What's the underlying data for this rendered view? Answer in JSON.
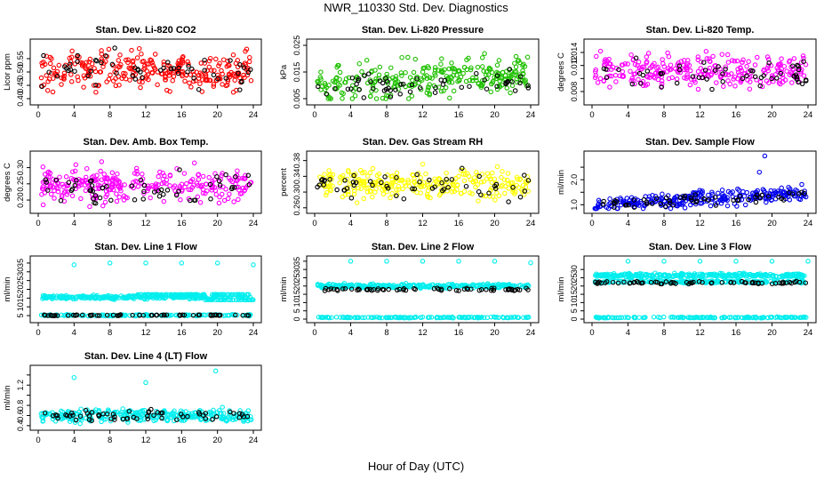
{
  "page": {
    "title": "NWR_110330  Std. Dev. Diagnostics",
    "xlabel": "Hour of Day (UTC)"
  },
  "colors": {
    "red": "#ff0000",
    "green": "#1fc000",
    "magenta": "#ff00ff",
    "yellow": "#ffff00",
    "blue": "#0000ee",
    "cyan": "#00eeee",
    "black": "#000000"
  },
  "chart_data": [
    {
      "type": "scatter",
      "title": "Stan. Dev. Li-820 CO2",
      "ylabel": "Licor ppm",
      "xlim": [
        0,
        24
      ],
      "xticks": [
        0,
        4,
        8,
        12,
        16,
        20,
        24
      ],
      "ylim": [
        0.39,
        0.61
      ],
      "yticks": [
        0.4,
        0.45,
        0.5,
        0.55
      ],
      "ytick_labels": [
        "0.40",
        "0.45",
        "0.50",
        "0.55"
      ],
      "series": [
        {
          "name": "main",
          "color": "red",
          "center": 0.505,
          "spread": 0.035,
          "count": 280,
          "min": 0.4,
          "max": 0.6
        },
        {
          "name": "black",
          "color": "black",
          "center": 0.51,
          "spread": 0.03,
          "count": 55,
          "min": 0.42,
          "max": 0.6
        }
      ]
    },
    {
      "type": "scatter",
      "title": "Stan. Dev. Li-820 Pressure",
      "ylabel": "kPa",
      "xlim": [
        0,
        24
      ],
      "xticks": [
        0,
        4,
        8,
        12,
        16,
        20,
        24
      ],
      "ylim": [
        0.004,
        0.026
      ],
      "yticks": [
        0.005,
        0.015,
        0.025
      ],
      "ytick_labels": [
        "0.005",
        "0.015",
        "0.025"
      ],
      "series": [
        {
          "name": "main",
          "color": "green",
          "center": 0.0095,
          "spread": 0.0035,
          "count": 280,
          "min": 0.005,
          "max": 0.026,
          "trend": 0.00022
        },
        {
          "name": "black",
          "color": "black",
          "center": 0.0085,
          "spread": 0.0022,
          "count": 55,
          "min": 0.005,
          "max": 0.018,
          "trend": 0.00015
        }
      ]
    },
    {
      "type": "scatter",
      "title": "Stan. Dev. Li-820 Temp.",
      "ylabel": "degrees C",
      "xlim": [
        0,
        24
      ],
      "xticks": [
        0,
        4,
        8,
        12,
        16,
        20,
        24
      ],
      "ylim": [
        0.0065,
        0.0155
      ],
      "yticks": [
        0.008,
        0.01,
        0.012,
        0.014
      ],
      "ytick_labels": [
        "0.008",
        "",
        "0.012",
        "0.014"
      ],
      "series": [
        {
          "name": "main",
          "color": "magenta",
          "center": 0.0112,
          "spread": 0.0012,
          "count": 280,
          "min": 0.007,
          "max": 0.0155
        },
        {
          "name": "black",
          "color": "black",
          "center": 0.0108,
          "spread": 0.0012,
          "count": 55,
          "min": 0.008,
          "max": 0.014
        }
      ]
    },
    {
      "type": "scatter",
      "title": "Stan. Dev. Amb. Box Temp.",
      "ylabel": "degrees C",
      "xlim": [
        0,
        24
      ],
      "xticks": [
        0,
        4,
        8,
        12,
        16,
        20,
        24
      ],
      "ylim": [
        0.17,
        0.34
      ],
      "yticks": [
        0.2,
        0.25,
        0.3
      ],
      "ytick_labels": [
        "0.20",
        "0.25",
        "0.30"
      ],
      "series": [
        {
          "name": "main",
          "color": "magenta",
          "center": 0.245,
          "spread": 0.025,
          "count": 280,
          "min": 0.18,
          "max": 0.33
        },
        {
          "name": "black",
          "color": "black",
          "center": 0.24,
          "spread": 0.022,
          "count": 55,
          "min": 0.19,
          "max": 0.3
        }
      ]
    },
    {
      "type": "scatter",
      "title": "Stan. Dev. Gas Stream RH",
      "ylabel": "percent",
      "xlim": [
        0,
        24
      ],
      "xticks": [
        0,
        4,
        8,
        12,
        16,
        20,
        24
      ],
      "ylim": [
        0.255,
        0.395
      ],
      "yticks": [
        0.26,
        0.3,
        0.34,
        0.38
      ],
      "ytick_labels": [
        "0.26",
        "0.30",
        "0.34",
        "0.38"
      ],
      "series": [
        {
          "name": "main",
          "color": "yellow",
          "center": 0.32,
          "spread": 0.018,
          "count": 280,
          "min": 0.265,
          "max": 0.385
        },
        {
          "name": "black",
          "color": "black",
          "center": 0.315,
          "spread": 0.016,
          "count": 55,
          "min": 0.265,
          "max": 0.39
        }
      ]
    },
    {
      "type": "scatter",
      "title": "Stan. Dev. Sample Flow",
      "ylabel": "ml/min",
      "xlim": [
        0,
        24
      ],
      "xticks": [
        0,
        4,
        8,
        12,
        16,
        20,
        24
      ],
      "ylim": [
        0.8,
        3.0
      ],
      "yticks": [
        1.0,
        1.5,
        2.0,
        2.5
      ],
      "ytick_labels": [
        "1.0",
        "",
        "2.0",
        ""
      ],
      "series": [
        {
          "name": "main",
          "color": "blue",
          "center": 1.0,
          "spread": 0.15,
          "count": 280,
          "min": 0.85,
          "max": 2.4,
          "trend": 0.02
        },
        {
          "name": "black",
          "color": "black",
          "center": 1.0,
          "spread": 0.12,
          "count": 55,
          "min": 0.9,
          "max": 2.4,
          "trend": 0.018
        },
        {
          "name": "outliers",
          "color": "blue",
          "points": [
            [
              19.2,
              2.95
            ],
            [
              18.6,
              2.3
            ]
          ]
        }
      ]
    },
    {
      "type": "scatter",
      "title": "Stan. Dev. Line 1 Flow",
      "ylabel": "ml/min",
      "xlim": [
        0,
        24
      ],
      "xticks": [
        0,
        4,
        8,
        12,
        16,
        20,
        24
      ],
      "ylim": [
        3,
        37
      ],
      "yticks": [
        5,
        10,
        15,
        20,
        25,
        30,
        35
      ],
      "ytick_labels": [
        "5",
        "10",
        "15",
        "20",
        "25",
        "30",
        "35"
      ],
      "series": [
        {
          "name": "band-a",
          "color": "cyan",
          "center": 15.5,
          "spread": 0.5,
          "count": 300,
          "min": 14,
          "max": 17,
          "split_after": 11,
          "split_to": 19.5
        },
        {
          "name": "band-b",
          "color": "cyan",
          "center": 16,
          "spread": 0.5,
          "count": 120,
          "min": 14,
          "max": 17,
          "xmin": 11,
          "xmax": 24,
          "drop_after": 18.5,
          "drop_to": 12.5
        },
        {
          "name": "low",
          "color": "cyan",
          "center": 5.2,
          "spread": 0.2,
          "count": 150,
          "min": 4.7,
          "max": 5.8
        },
        {
          "name": "black",
          "color": "black",
          "center": 5.2,
          "spread": 0.15,
          "count": 60,
          "min": 4.8,
          "max": 5.6
        },
        {
          "name": "outliers",
          "color": "cyan",
          "points": [
            [
              4,
              34
            ],
            [
              8,
              35
            ],
            [
              12,
              35
            ],
            [
              16,
              35
            ],
            [
              20,
              35
            ],
            [
              24,
              34
            ]
          ]
        }
      ]
    },
    {
      "type": "scatter",
      "title": "Stan. Dev. Line 2 Flow",
      "ylabel": "ml/min",
      "xlim": [
        0,
        24
      ],
      "xticks": [
        0,
        4,
        8,
        12,
        16,
        20,
        24
      ],
      "ylim": [
        0,
        36
      ],
      "yticks": [
        0,
        5,
        10,
        15,
        20,
        25,
        30,
        35
      ],
      "ytick_labels": [
        "0",
        "5",
        "10",
        "15",
        "20",
        "25",
        "30",
        "35"
      ],
      "series": [
        {
          "name": "main",
          "color": "cyan",
          "center": 20,
          "spread": 0.6,
          "count": 300,
          "min": 18.5,
          "max": 22
        },
        {
          "name": "low",
          "color": "cyan",
          "center": 1.0,
          "spread": 0.15,
          "count": 150,
          "min": 0.6,
          "max": 1.4
        },
        {
          "name": "black",
          "color": "black",
          "center": 18,
          "spread": 0.4,
          "count": 65,
          "min": 17,
          "max": 19
        },
        {
          "name": "outliers",
          "color": "cyan",
          "points": [
            [
              4,
              35
            ],
            [
              8,
              35
            ],
            [
              12,
              35
            ],
            [
              16,
              35
            ],
            [
              20,
              35
            ],
            [
              24,
              34
            ]
          ]
        }
      ]
    },
    {
      "type": "scatter",
      "title": "Stan. Dev. Line 3 Flow",
      "ylabel": "ml/min",
      "xlim": [
        0,
        24
      ],
      "xticks": [
        0,
        4,
        8,
        12,
        16,
        20,
        24
      ],
      "ylim": [
        0,
        36
      ],
      "yticks": [
        0,
        5,
        10,
        15,
        20,
        25,
        30
      ],
      "ytick_labels": [
        "0",
        "5",
        "10",
        "15",
        "20",
        "25",
        "30"
      ],
      "series": [
        {
          "name": "upper",
          "color": "cyan",
          "center": 26.5,
          "spread": 0.6,
          "count": 280,
          "min": 25,
          "max": 28.5
        },
        {
          "name": "mid",
          "color": "cyan",
          "center": 22.5,
          "spread": 0.4,
          "count": 200,
          "min": 21.5,
          "max": 23.5
        },
        {
          "name": "low",
          "color": "cyan",
          "center": 1.0,
          "spread": 0.15,
          "count": 150,
          "min": 0.6,
          "max": 1.4
        },
        {
          "name": "black",
          "color": "black",
          "center": 22,
          "spread": 0.4,
          "count": 65,
          "min": 20.5,
          "max": 23
        },
        {
          "name": "outliers",
          "color": "cyan",
          "points": [
            [
              4,
              35
            ],
            [
              8,
              35
            ],
            [
              12,
              35
            ],
            [
              16,
              35
            ],
            [
              20,
              35
            ],
            [
              24,
              35
            ]
          ]
        }
      ]
    },
    {
      "type": "scatter",
      "title": "Stan. Dev. Line 4 (LT) Flow",
      "ylabel": "ml/min",
      "xlim": [
        0,
        24
      ],
      "xticks": [
        0,
        4,
        8,
        12,
        16,
        20,
        24
      ],
      "ylim": [
        0.38,
        1.52
      ],
      "yticks": [
        0.4,
        0.6,
        0.8,
        1.0,
        1.2,
        1.4
      ],
      "ytick_labels": [
        "0.4",
        "0.6",
        "0.8",
        "",
        "1.2",
        ""
      ],
      "series": [
        {
          "name": "main",
          "color": "cyan",
          "center": 0.6,
          "spread": 0.06,
          "count": 300,
          "min": 0.44,
          "max": 0.78
        },
        {
          "name": "black",
          "color": "black",
          "center": 0.6,
          "spread": 0.05,
          "count": 60,
          "min": 0.47,
          "max": 0.74
        },
        {
          "name": "outliers",
          "color": "cyan",
          "points": [
            [
              4,
              1.35
            ],
            [
              12,
              1.25
            ],
            [
              19.8,
              1.48
            ]
          ]
        }
      ]
    }
  ]
}
